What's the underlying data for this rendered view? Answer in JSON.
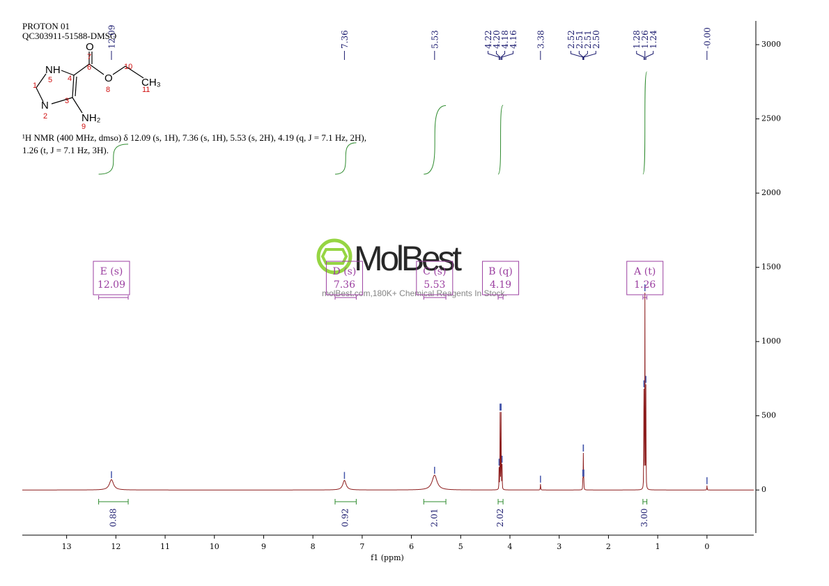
{
  "header": {
    "title": "PROTON 01",
    "sample": "QC303911-51588-DMSO"
  },
  "structure": {
    "atoms": [
      "O",
      "NH",
      "O",
      "CH₃",
      "N",
      "NH₂"
    ],
    "numbers": [
      "1",
      "2",
      "3",
      "4",
      "5",
      "6",
      "7",
      "8",
      "9",
      "10",
      "11"
    ]
  },
  "description": [
    "¹H NMR (400 MHz, dmso) δ 12.09 (s, 1H), 7.36 (s, 1H), 5.53 (s, 2H), 4.19 (q, J = 7.1 Hz, 2H),",
    "1.26 (t, J = 7.1 Hz, 3H)."
  ],
  "watermark": {
    "brand": "MolBest",
    "slogan": "molBest.com,180K+ Chemical Reagents In Stock."
  },
  "chart_data": {
    "type": "nmr",
    "x_label": "f1 (ppm)",
    "xlim": [
      13.9,
      -0.95
    ],
    "xticks": [
      13,
      12,
      11,
      10,
      9,
      8,
      7,
      6,
      5,
      4,
      3,
      2,
      1,
      0
    ],
    "ylim": [
      -290,
      3160
    ],
    "yticks": [
      0,
      500,
      1000,
      1500,
      2000,
      2500,
      3000
    ],
    "color": "#8b1a1a",
    "peaks": {
      "positions": [
        12.09,
        7.36,
        5.53,
        4.22,
        {
          "value": 4.2,
          "label": "4.20"
        },
        4.18,
        4.16,
        3.38,
        2.52,
        2.51,
        2.51,
        {
          "value": 2.5,
          "label": "2.50"
        },
        1.28,
        1.26,
        1.24,
        {
          "value": 0,
          "label": "-0.00"
        }
      ],
      "heights": [
        70,
        65,
        100,
        140,
        510,
        510,
        160,
        40,
        60,
        120,
        120,
        60,
        650,
        1300,
        680,
        30
      ],
      "linewidths": [
        0.1,
        0.08,
        0.12,
        0.006,
        0.006,
        0.006,
        0.006,
        0.008,
        0.006,
        0.006,
        0.006,
        0.006,
        0.006,
        0.006,
        0.006,
        0.006
      ]
    },
    "integrals": {
      "ranges": [
        [
          12.35,
          11.75
        ],
        [
          7.55,
          7.12
        ],
        [
          5.75,
          5.3
        ],
        [
          4.24,
          4.14
        ],
        [
          1.3,
          1.22
        ]
      ],
      "values": [
        0.88,
        0.92,
        2.01,
        2.02,
        3
      ],
      "value_labels": [
        "0.88",
        "0.92",
        "2.01",
        "2.02",
        "3.00"
      ],
      "color": "#2e8b2e"
    },
    "multiplets": {
      "labels": [
        "E (s)",
        "D (s)",
        "C (s)",
        "B (q)",
        "A (t)"
      ],
      "shifts": [
        12.09,
        7.36,
        5.53,
        4.19,
        1.26
      ],
      "color": "#9b3fa0"
    }
  }
}
